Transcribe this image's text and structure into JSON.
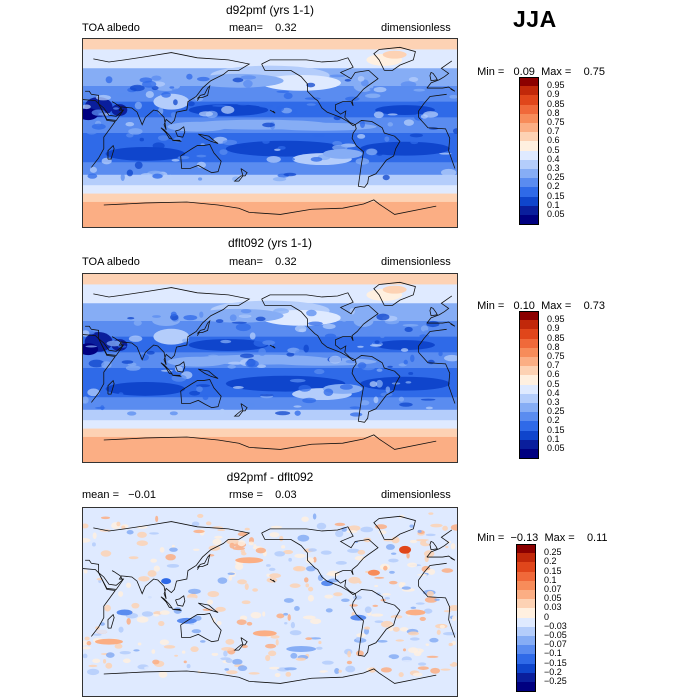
{
  "season": "JJA",
  "panels": [
    {
      "title": "d92pmf (yrs 1-1)",
      "left": "TOA albedo",
      "mid": "mean=    0.32",
      "right": "dimensionless",
      "min": "0.09",
      "max": "0.75",
      "colorbar": {
        "labels": [
          "0.95",
          "0.9",
          "0.85",
          "0.8",
          "0.75",
          "0.7",
          "0.6",
          "0.5",
          "0.4",
          "0.3",
          "0.25",
          "0.2",
          "0.15",
          "0.1",
          "0.05"
        ],
        "colors": [
          "#8b0000",
          "#c1280a",
          "#e0461b",
          "#f0693a",
          "#f78c5a",
          "#fbae84",
          "#fdd2b4",
          "#fff0e0",
          "#dfeaff",
          "#b4cdfb",
          "#86adf5",
          "#5a8cf0",
          "#2f6ae8",
          "#0f45cc",
          "#0a1e9c",
          "#000080"
        ]
      }
    },
    {
      "title": "dflt092 (yrs 1-1)",
      "left": "TOA albedo",
      "mid": "mean=    0.32",
      "right": "dimensionless",
      "min": "0.10",
      "max": "0.73",
      "colorbar": {
        "labels": [
          "0.95",
          "0.9",
          "0.85",
          "0.8",
          "0.75",
          "0.7",
          "0.6",
          "0.5",
          "0.4",
          "0.3",
          "0.25",
          "0.2",
          "0.15",
          "0.1",
          "0.05"
        ],
        "colors": [
          "#8b0000",
          "#c1280a",
          "#e0461b",
          "#f0693a",
          "#f78c5a",
          "#fbae84",
          "#fdd2b4",
          "#fff0e0",
          "#dfeaff",
          "#b4cdfb",
          "#86adf5",
          "#5a8cf0",
          "#2f6ae8",
          "#0f45cc",
          "#0a1e9c",
          "#000080"
        ]
      }
    },
    {
      "title": "d92pmf - dflt092",
      "left": "mean =   −0.01",
      "mid": "rmse =    0.03",
      "right": "dimensionless",
      "min": "−0.13",
      "max": "0.11",
      "colorbar": {
        "labels": [
          "0.25",
          "0.2",
          "0.15",
          "0.1",
          "0.07",
          "0.05",
          "0.03",
          "0",
          "−0.03",
          "−0.05",
          "−0.07",
          "−0.1",
          "−0.15",
          "−0.2",
          "−0.25"
        ],
        "colors": [
          "#8b0000",
          "#c1280a",
          "#e0461b",
          "#f0693a",
          "#f78c5a",
          "#fbae84",
          "#fdd2b4",
          "#fff0e0",
          "#dfeaff",
          "#b4cdfb",
          "#86adf5",
          "#5a8cf0",
          "#2f6ae8",
          "#0f45cc",
          "#0a1e9c",
          "#000080"
        ]
      }
    }
  ],
  "minmax_labels": {
    "min": "Min =",
    "max": "Max ="
  }
}
